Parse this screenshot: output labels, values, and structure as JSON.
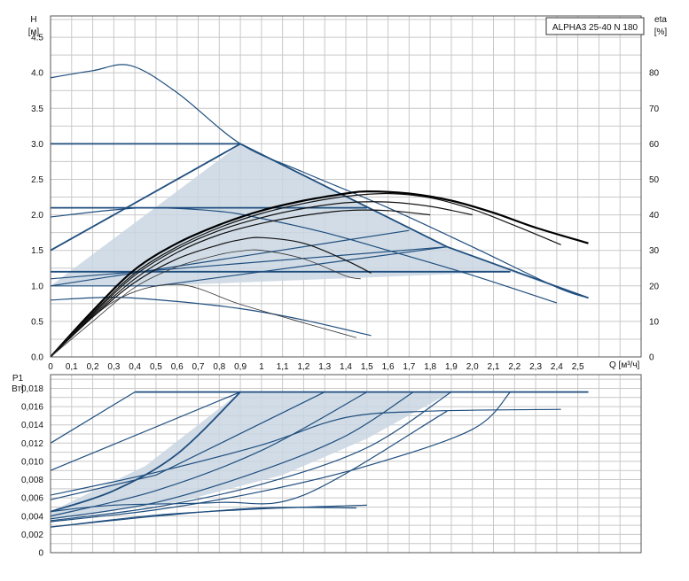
{
  "model_label": "ALPHA3 25-40 N 180",
  "chart_data": [
    {
      "id": "head",
      "type": "line",
      "title": "",
      "ylabel": "H",
      "yunit": "[м]",
      "y2label": "eta",
      "y2unit": "[%]",
      "xlabel": "Q [м³/ч]",
      "xlim": [
        0,
        2.8
      ],
      "ylim": [
        0,
        4.8
      ],
      "y2lim": [
        0,
        96
      ],
      "grid": true,
      "xticks": [
        "0",
        "0,1",
        "0,2",
        "0,3",
        "0,4",
        "0,5",
        "0,6",
        "0,7",
        "0,8",
        "0,9",
        "1",
        "1,1",
        "1,2",
        "1,3",
        "1,4",
        "1,5",
        "1,6",
        "1,7",
        "1,8",
        "1,9",
        "2,0",
        "2,1",
        "2,2",
        "2,3",
        "2,4",
        "2,5"
      ],
      "yticks": [
        "0.0",
        "0.5",
        "1.0",
        "1.5",
        "2.0",
        "2.5",
        "3.0",
        "3.5",
        "4.0",
        "4.5"
      ],
      "y2ticks": [
        "0",
        "10",
        "20",
        "30",
        "40",
        "50",
        "60",
        "70",
        "80"
      ],
      "shaded_region": [
        [
          0,
          1.0
        ],
        [
          0.9,
          3.0
        ],
        [
          1.88,
          1.55
        ],
        [
          2.55,
          0.83
        ],
        [
          2.18,
          1.2
        ],
        [
          0.5,
          1.0
        ]
      ],
      "series": [
        {
          "style": "blue-bold",
          "values": [
            [
              0,
              3.0
            ],
            [
              0.9,
              3.0
            ]
          ]
        },
        {
          "style": "blue-bold",
          "values": [
            [
              0,
              1.5
            ],
            [
              0.9,
              3.0
            ]
          ]
        },
        {
          "style": "blue-bold",
          "values": [
            [
              0.9,
              3.0
            ],
            [
              1.88,
              1.55
            ],
            [
              2.55,
              0.83
            ]
          ]
        },
        {
          "style": "blue",
          "values": [
            [
              0,
              3.93
            ],
            [
              0.2,
              4.03
            ],
            [
              0.38,
              4.1
            ],
            [
              0.6,
              3.72
            ],
            [
              0.9,
              3.0
            ],
            [
              1.2,
              2.6
            ],
            [
              1.6,
              2.1
            ],
            [
              2.0,
              1.55
            ],
            [
              2.4,
              0.98
            ],
            [
              2.55,
              0.83
            ]
          ]
        },
        {
          "style": "blue-bold",
          "values": [
            [
              0,
              2.1
            ],
            [
              1.5,
              2.1
            ]
          ]
        },
        {
          "style": "blue",
          "values": [
            [
              0,
              1.97
            ],
            [
              0.3,
              2.07
            ],
            [
              0.5,
              2.1
            ],
            [
              0.8,
              2.05
            ],
            [
              1.0,
              1.95
            ],
            [
              1.3,
              1.75
            ],
            [
              1.6,
              1.5
            ],
            [
              2.0,
              1.15
            ],
            [
              2.4,
              0.76
            ]
          ]
        },
        {
          "style": "blue",
          "values": [
            [
              0,
              1.0
            ],
            [
              1.7,
              1.78
            ]
          ]
        },
        {
          "style": "blue",
          "values": [
            [
              0,
              1.1
            ],
            [
              1.88,
              1.55
            ]
          ]
        },
        {
          "style": "blue",
          "values": [
            [
              0,
              1.0
            ],
            [
              0.5,
              1.0
            ],
            [
              1.88,
              1.55
            ]
          ]
        },
        {
          "style": "blue-bold",
          "values": [
            [
              0,
              1.2
            ],
            [
              2.18,
              1.2
            ]
          ]
        },
        {
          "style": "blue",
          "values": [
            [
              0,
              0.8
            ],
            [
              0.3,
              0.84
            ],
            [
              0.6,
              0.78
            ],
            [
              0.9,
              0.68
            ],
            [
              1.2,
              0.52
            ],
            [
              1.52,
              0.3
            ]
          ]
        },
        {
          "style": "eff-thin",
          "values": [
            [
              0,
              0
            ],
            [
              0.3,
              0.78
            ],
            [
              0.6,
              1.02
            ],
            [
              0.9,
              0.74
            ],
            [
              1.2,
              0.48
            ],
            [
              1.45,
              0.27
            ]
          ]
        },
        {
          "style": "eff-bold",
          "values": [
            [
              0,
              0
            ],
            [
              0.2,
              0.65
            ],
            [
              0.4,
              1.23
            ],
            [
              0.6,
              1.6
            ],
            [
              0.8,
              1.86
            ],
            [
              1.0,
              2.06
            ],
            [
              1.2,
              2.2
            ],
            [
              1.4,
              2.3
            ],
            [
              1.5,
              2.33
            ],
            [
              1.7,
              2.3
            ],
            [
              1.9,
              2.2
            ],
            [
              2.1,
              2.03
            ],
            [
              2.3,
              1.82
            ],
            [
              2.55,
              1.6
            ]
          ]
        },
        {
          "style": "eff",
          "values": [
            [
              0,
              0
            ],
            [
              0.2,
              0.62
            ],
            [
              0.4,
              1.18
            ],
            [
              0.6,
              1.55
            ],
            [
              0.8,
              1.82
            ],
            [
              1.0,
              2.02
            ],
            [
              1.2,
              2.16
            ],
            [
              1.4,
              2.26
            ],
            [
              1.6,
              2.3
            ],
            [
              1.8,
              2.24
            ],
            [
              2.0,
              2.08
            ],
            [
              2.2,
              1.85
            ],
            [
              2.42,
              1.58
            ]
          ]
        },
        {
          "style": "eff",
          "values": [
            [
              0,
              0
            ],
            [
              0.2,
              0.6
            ],
            [
              0.4,
              1.15
            ],
            [
              0.6,
              1.52
            ],
            [
              0.8,
              1.78
            ],
            [
              1.0,
              1.96
            ],
            [
              1.2,
              2.09
            ],
            [
              1.4,
              2.17
            ],
            [
              1.6,
              2.18
            ],
            [
              1.8,
              2.12
            ],
            [
              2.0,
              2.0
            ]
          ]
        },
        {
          "style": "eff",
          "values": [
            [
              0,
              0
            ],
            [
              0.2,
              0.58
            ],
            [
              0.4,
              1.1
            ],
            [
              0.6,
              1.47
            ],
            [
              0.8,
              1.72
            ],
            [
              1.0,
              1.88
            ],
            [
              1.2,
              1.99
            ],
            [
              1.4,
              2.06
            ],
            [
              1.6,
              2.06
            ],
            [
              1.8,
              2.0
            ]
          ]
        },
        {
          "style": "eff",
          "values": [
            [
              0,
              0
            ],
            [
              0.2,
              0.56
            ],
            [
              0.4,
              1.05
            ],
            [
              0.6,
              1.38
            ],
            [
              0.8,
              1.58
            ],
            [
              0.9,
              1.65
            ],
            [
              1.0,
              1.68
            ],
            [
              1.2,
              1.6
            ],
            [
              1.4,
              1.36
            ],
            [
              1.52,
              1.18
            ]
          ]
        },
        {
          "style": "eff-thin",
          "values": [
            [
              0,
              0
            ],
            [
              0.2,
              0.5
            ],
            [
              0.4,
              0.98
            ],
            [
              0.6,
              1.27
            ],
            [
              0.8,
              1.44
            ],
            [
              0.9,
              1.49
            ],
            [
              1.0,
              1.5
            ],
            [
              1.2,
              1.38
            ],
            [
              1.4,
              1.14
            ],
            [
              1.47,
              1.1
            ]
          ]
        }
      ]
    },
    {
      "id": "power",
      "type": "line",
      "title": "",
      "ylabel": "P1",
      "yunit": "Вт]",
      "xlim": [
        0,
        2.8
      ],
      "ylim": [
        0,
        0.0195
      ],
      "grid": true,
      "yticks": [
        "0",
        "0,002",
        "0,004",
        "0,006",
        "0,008",
        "0,010",
        "0,012",
        "0,014",
        "0,016",
        "0,018"
      ],
      "shaded_region": [
        [
          0,
          0.0045
        ],
        [
          0.45,
          0.0095
        ],
        [
          0.9,
          0.0176
        ],
        [
          1.9,
          0.0176
        ],
        [
          1.5,
          0.0125
        ],
        [
          1.1,
          0.0085
        ],
        [
          0.6,
          0.0055
        ],
        [
          0,
          0.0037
        ]
      ],
      "series": [
        {
          "style": "blue-bold",
          "values": [
            [
              0.4,
              0.0176
            ],
            [
              2.55,
              0.0176
            ]
          ]
        },
        {
          "style": "blue",
          "values": [
            [
              0,
              0.012
            ],
            [
              0.4,
              0.0176
            ]
          ]
        },
        {
          "style": "blue",
          "values": [
            [
              0,
              0.009
            ],
            [
              0.9,
              0.0176
            ]
          ]
        },
        {
          "style": "blue-bold",
          "values": [
            [
              0,
              0.0045
            ],
            [
              0.3,
              0.0068
            ],
            [
              0.6,
              0.0108
            ],
            [
              0.9,
              0.0176
            ]
          ]
        },
        {
          "style": "blue",
          "values": [
            [
              0,
              0.0063
            ],
            [
              0.5,
              0.0088
            ],
            [
              1.0,
              0.0118
            ],
            [
              1.4,
              0.0148
            ],
            [
              1.8,
              0.0155
            ],
            [
              2.42,
              0.0157
            ]
          ]
        },
        {
          "style": "blue",
          "values": [
            [
              0,
              0.0058
            ],
            [
              0.5,
              0.0085
            ],
            [
              1.3,
              0.0176
            ]
          ]
        },
        {
          "style": "blue",
          "values": [
            [
              0,
              0.004
            ],
            [
              0.5,
              0.0068
            ],
            [
              1.0,
              0.0112
            ],
            [
              1.5,
              0.0176
            ]
          ]
        },
        {
          "style": "blue",
          "values": [
            [
              0,
              0.0037
            ],
            [
              0.5,
              0.0055
            ],
            [
              1.0,
              0.009
            ],
            [
              1.4,
              0.0128
            ],
            [
              1.72,
              0.0176
            ]
          ]
        },
        {
          "style": "blue",
          "values": [
            [
              0,
              0.0035
            ],
            [
              0.5,
              0.005
            ],
            [
              1.0,
              0.0075
            ],
            [
              1.5,
              0.0115
            ],
            [
              1.9,
              0.0176
            ]
          ]
        },
        {
          "style": "blue",
          "values": [
            [
              0,
              0.0034
            ],
            [
              0.5,
              0.0047
            ],
            [
              1.0,
              0.0067
            ],
            [
              1.5,
              0.0095
            ],
            [
              2.0,
              0.0135
            ],
            [
              2.18,
              0.0176
            ]
          ]
        },
        {
          "style": "blue",
          "values": [
            [
              0,
              0.0045
            ],
            [
              0.3,
              0.0052
            ],
            [
              0.8,
              0.0055
            ],
            [
              1.2,
              0.0063
            ],
            [
              1.88,
              0.0155
            ]
          ]
        },
        {
          "style": "blue",
          "values": [
            [
              0,
              0.0028
            ],
            [
              0.5,
              0.0041
            ],
            [
              1.0,
              0.0048
            ],
            [
              1.5,
              0.0052
            ]
          ]
        },
        {
          "style": "blue",
          "values": [
            [
              0,
              0.0028
            ],
            [
              0.5,
              0.004
            ],
            [
              1.0,
              0.0049
            ],
            [
              1.45,
              0.0049
            ]
          ]
        }
      ]
    }
  ]
}
